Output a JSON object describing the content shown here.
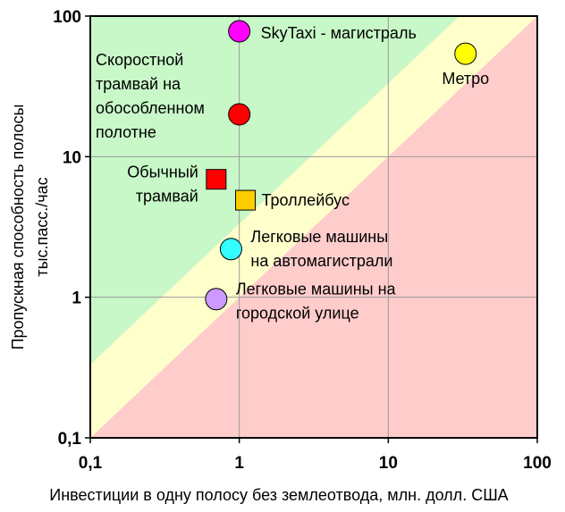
{
  "chart_data": {
    "type": "scatter",
    "xlabel": "Инвестиции в одну полосу без землеотвода, млн. долл. США",
    "ylabel": [
      "Пропускная способность полосы",
      "тыс.пасс./час"
    ],
    "x_scale": "log",
    "y_scale": "log",
    "xlim": [
      0.1,
      100
    ],
    "ylim": [
      0.1,
      100
    ],
    "x_ticks": [
      "0,1",
      "1",
      "10",
      "100"
    ],
    "y_ticks": [
      "0,1",
      "1",
      "10",
      "100"
    ],
    "grid": true,
    "zones": [
      {
        "region": "above y = 3.33·x",
        "color": "#c8f8c8"
      },
      {
        "region": "between y = x and y = 3.33·x",
        "color": "#ffffcc"
      },
      {
        "region": "below y = x",
        "color": "#ffcccc"
      }
    ],
    "points": [
      {
        "label": [
          "SkyTaxi - магистраль"
        ],
        "x": 1.0,
        "y": 78,
        "marker": "circle",
        "color": "#ff00ff"
      },
      {
        "label": [
          "Метро"
        ],
        "x": 33,
        "y": 54,
        "marker": "circle",
        "color": "#ffff00"
      },
      {
        "label": [
          "Скоростной",
          "трамвай на",
          "обособленном",
          "полотне"
        ],
        "x": 1.0,
        "y": 20,
        "marker": "circle",
        "color": "#ff0000"
      },
      {
        "label": [
          "Обычный",
          "трамвай"
        ],
        "x": 0.7,
        "y": 6.9,
        "marker": "square",
        "color": "#ff0000"
      },
      {
        "label": [
          "Троллейбус"
        ],
        "x": 1.1,
        "y": 4.9,
        "marker": "square",
        "color": "#ffcc00"
      },
      {
        "label": [
          "Легковые машины",
          "на автомагистрали"
        ],
        "x": 0.88,
        "y": 2.2,
        "marker": "circle",
        "color": "#33ffff"
      },
      {
        "label": [
          "Легковые машины на",
          "городской улице"
        ],
        "x": 0.7,
        "y": 0.97,
        "marker": "circle",
        "color": "#cc99ff"
      }
    ]
  }
}
